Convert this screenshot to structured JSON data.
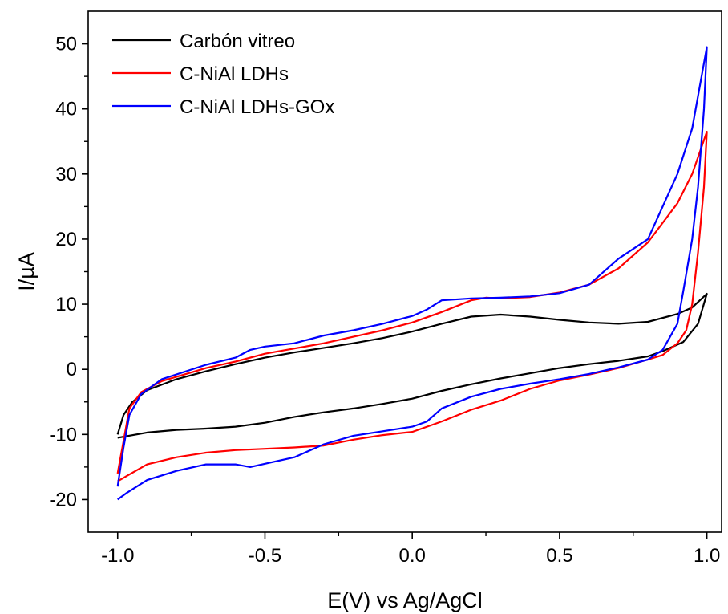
{
  "chart_data": {
    "type": "line",
    "xlabel": "E(V) vs Ag/AgCl",
    "ylabel": "I/µA",
    "xlim": [
      -1.1,
      1.05
    ],
    "ylim": [
      -25,
      55
    ],
    "xticks": [
      -1.0,
      -0.5,
      0.0,
      0.5,
      1.0
    ],
    "xtick_labels": [
      "-1.0",
      "-0.5",
      "0.0",
      "0.5",
      "1.0"
    ],
    "yticks": [
      -20,
      -10,
      0,
      10,
      20,
      30,
      40,
      50
    ],
    "ytick_labels": [
      "-20",
      "-10",
      "0",
      "10",
      "20",
      "30",
      "40",
      "50"
    ],
    "grid": false,
    "legend_position": "top-left",
    "series": [
      {
        "name": "Carbón vitreo",
        "color": "#000000",
        "points": [
          [
            -1.0,
            -10.0
          ],
          [
            -0.98,
            -7.0
          ],
          [
            -0.95,
            -5.0
          ],
          [
            -0.9,
            -3.2
          ],
          [
            -0.8,
            -1.5
          ],
          [
            -0.7,
            -0.3
          ],
          [
            -0.6,
            0.8
          ],
          [
            -0.5,
            1.8
          ],
          [
            -0.4,
            2.6
          ],
          [
            -0.3,
            3.3
          ],
          [
            -0.2,
            4.0
          ],
          [
            -0.1,
            4.8
          ],
          [
            0.0,
            5.8
          ],
          [
            0.1,
            7.0
          ],
          [
            0.2,
            8.1
          ],
          [
            0.3,
            8.4
          ],
          [
            0.4,
            8.1
          ],
          [
            0.5,
            7.6
          ],
          [
            0.6,
            7.2
          ],
          [
            0.7,
            7.0
          ],
          [
            0.8,
            7.3
          ],
          [
            0.9,
            8.5
          ],
          [
            0.95,
            9.5
          ],
          [
            1.0,
            11.6
          ],
          [
            0.97,
            7.0
          ],
          [
            0.92,
            4.2
          ],
          [
            0.85,
            2.8
          ],
          [
            0.8,
            2.0
          ],
          [
            0.7,
            1.3
          ],
          [
            0.6,
            0.8
          ],
          [
            0.5,
            0.2
          ],
          [
            0.4,
            -0.6
          ],
          [
            0.3,
            -1.4
          ],
          [
            0.2,
            -2.3
          ],
          [
            0.1,
            -3.3
          ],
          [
            0.0,
            -4.5
          ],
          [
            -0.1,
            -5.3
          ],
          [
            -0.2,
            -6.0
          ],
          [
            -0.3,
            -6.6
          ],
          [
            -0.4,
            -7.3
          ],
          [
            -0.5,
            -8.2
          ],
          [
            -0.6,
            -8.8
          ],
          [
            -0.7,
            -9.1
          ],
          [
            -0.8,
            -9.3
          ],
          [
            -0.9,
            -9.7
          ],
          [
            -1.0,
            -10.5
          ]
        ]
      },
      {
        "name": "C-NiAl LDHs",
        "color": "#ff0000",
        "points": [
          [
            -1.0,
            -16.0
          ],
          [
            -0.98,
            -11.0
          ],
          [
            -0.96,
            -6.0
          ],
          [
            -0.92,
            -3.5
          ],
          [
            -0.85,
            -1.8
          ],
          [
            -0.7,
            0.2
          ],
          [
            -0.6,
            1.2
          ],
          [
            -0.5,
            2.4
          ],
          [
            -0.4,
            3.2
          ],
          [
            -0.3,
            4.0
          ],
          [
            -0.2,
            5.0
          ],
          [
            -0.1,
            6.0
          ],
          [
            0.0,
            7.2
          ],
          [
            0.1,
            8.8
          ],
          [
            0.2,
            10.6
          ],
          [
            0.25,
            11.0
          ],
          [
            0.3,
            10.9
          ],
          [
            0.4,
            11.1
          ],
          [
            0.5,
            11.8
          ],
          [
            0.6,
            13.0
          ],
          [
            0.7,
            15.5
          ],
          [
            0.8,
            19.5
          ],
          [
            0.9,
            25.5
          ],
          [
            0.95,
            30.0
          ],
          [
            1.0,
            36.5
          ],
          [
            0.99,
            28.0
          ],
          [
            0.97,
            18.0
          ],
          [
            0.95,
            10.0
          ],
          [
            0.93,
            6.0
          ],
          [
            0.9,
            4.0
          ],
          [
            0.85,
            2.2
          ],
          [
            0.8,
            1.5
          ],
          [
            0.7,
            0.2
          ],
          [
            0.6,
            -0.8
          ],
          [
            0.5,
            -1.7
          ],
          [
            0.4,
            -3.0
          ],
          [
            0.3,
            -4.8
          ],
          [
            0.2,
            -6.2
          ],
          [
            0.1,
            -8.0
          ],
          [
            0.0,
            -9.6
          ],
          [
            -0.1,
            -10.1
          ],
          [
            -0.2,
            -10.8
          ],
          [
            -0.3,
            -11.7
          ],
          [
            -0.4,
            -12.0
          ],
          [
            -0.5,
            -12.2
          ],
          [
            -0.6,
            -12.4
          ],
          [
            -0.7,
            -12.8
          ],
          [
            -0.8,
            -13.5
          ],
          [
            -0.9,
            -14.6
          ],
          [
            -0.97,
            -16.4
          ],
          [
            -1.0,
            -17.2
          ]
        ]
      },
      {
        "name": "C-NiAl LDHs-GOx",
        "color": "#0000ff",
        "points": [
          [
            -1.0,
            -18.0
          ],
          [
            -0.98,
            -12.0
          ],
          [
            -0.96,
            -7.0
          ],
          [
            -0.92,
            -3.8
          ],
          [
            -0.85,
            -1.5
          ],
          [
            -0.7,
            0.7
          ],
          [
            -0.6,
            1.8
          ],
          [
            -0.55,
            3.0
          ],
          [
            -0.5,
            3.5
          ],
          [
            -0.4,
            4.0
          ],
          [
            -0.3,
            5.2
          ],
          [
            -0.2,
            6.0
          ],
          [
            -0.1,
            7.0
          ],
          [
            0.0,
            8.2
          ],
          [
            0.05,
            9.2
          ],
          [
            0.1,
            10.6
          ],
          [
            0.2,
            10.9
          ],
          [
            0.3,
            11.0
          ],
          [
            0.4,
            11.2
          ],
          [
            0.5,
            11.7
          ],
          [
            0.6,
            13.0
          ],
          [
            0.7,
            17.0
          ],
          [
            0.8,
            20.0
          ],
          [
            0.9,
            30.0
          ],
          [
            0.95,
            37.0
          ],
          [
            1.0,
            49.5
          ],
          [
            0.99,
            40.0
          ],
          [
            0.97,
            28.0
          ],
          [
            0.95,
            20.0
          ],
          [
            0.92,
            12.0
          ],
          [
            0.9,
            7.0
          ],
          [
            0.85,
            3.0
          ],
          [
            0.8,
            1.5
          ],
          [
            0.7,
            0.3
          ],
          [
            0.6,
            -0.7
          ],
          [
            0.5,
            -1.5
          ],
          [
            0.4,
            -2.2
          ],
          [
            0.3,
            -3.0
          ],
          [
            0.2,
            -4.2
          ],
          [
            0.1,
            -6.0
          ],
          [
            0.05,
            -8.0
          ],
          [
            0.0,
            -8.8
          ],
          [
            -0.1,
            -9.5
          ],
          [
            -0.2,
            -10.2
          ],
          [
            -0.3,
            -11.5
          ],
          [
            -0.4,
            -13.5
          ],
          [
            -0.5,
            -14.5
          ],
          [
            -0.55,
            -15.0
          ],
          [
            -0.6,
            -14.6
          ],
          [
            -0.7,
            -14.6
          ],
          [
            -0.8,
            -15.6
          ],
          [
            -0.9,
            -17.0
          ],
          [
            -0.97,
            -19.0
          ],
          [
            -1.0,
            -20.0
          ]
        ]
      }
    ]
  }
}
